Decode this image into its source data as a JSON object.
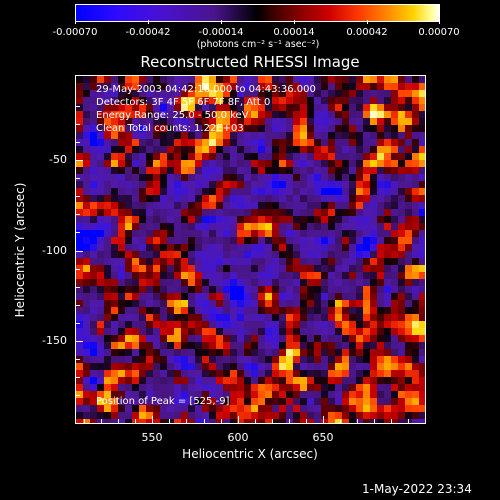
{
  "colorbar": {
    "tick_labels": [
      "-0.00070",
      "-0.00042",
      "-0.00014",
      "0.00014",
      "0.00042",
      "0.00070"
    ],
    "units_label": "(photons cm⁻² s⁻¹ asec⁻²)",
    "colors": [
      "#0000ff",
      "#4a148c",
      "#000000",
      "#8b0000",
      "#ff3a00",
      "#ffd400",
      "#ffffff"
    ]
  },
  "title": "Reconstructed RHESSI Image",
  "info": {
    "time_range": "29-May-2003 04:42:16.000 to 04:43:36.000",
    "detectors": "Detectors: 3F 4F 5F 6F 7F 8F, Att 0",
    "energy_range": "Energy Range: 25.0 - 50.0 keV",
    "method_counts": "Clean     Total counts: 1.22E+03",
    "peak_position": "Position of Peak = [525,-9]"
  },
  "axes": {
    "x_title": "Heliocentric X (arcsec)",
    "y_title": "Heliocentric Y (arcsec)",
    "x_ticks": [
      "550",
      "600",
      "650"
    ],
    "y_ticks": [
      "-50",
      "-100",
      "-150"
    ]
  },
  "chart_data": {
    "type": "heatmap",
    "title": "Reconstructed RHESSI Image",
    "xlabel": "Heliocentric X (arcsec)",
    "ylabel": "Heliocentric Y (arcsec)",
    "xlim": [
      505,
      697
    ],
    "ylim": [
      -199,
      -9
    ],
    "colorbar_range": [
      -0.0007,
      0.0007
    ],
    "peak_position": [
      525,
      -9
    ],
    "grid": false
  },
  "timestamp": "1-May-2022 23:34"
}
